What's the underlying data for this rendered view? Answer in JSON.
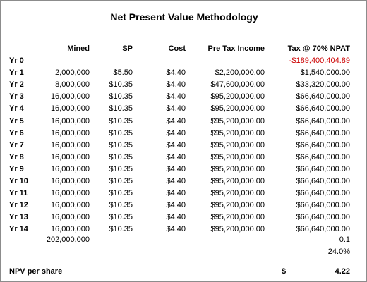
{
  "title": "Net Present Value Methodology",
  "headers": {
    "mined": "Mined",
    "sp": "SP",
    "cost": "Cost",
    "pre_tax_income": "Pre Tax Income",
    "tax": "Tax @ 70% NPAT"
  },
  "rows": [
    {
      "label": "Yr 0",
      "mined": "",
      "sp": "",
      "cost": "",
      "pre_tax_income": "",
      "tax": "-$189,400,404.89"
    },
    {
      "label": "Yr 1",
      "mined": "2,000,000",
      "sp": "$5.50",
      "cost": "$4.40",
      "pre_tax_income": "$2,200,000.00",
      "tax": "$1,540,000.00"
    },
    {
      "label": "Yr 2",
      "mined": "8,000,000",
      "sp": "$10.35",
      "cost": "$4.40",
      "pre_tax_income": "$47,600,000.00",
      "tax": "$33,320,000.00"
    },
    {
      "label": "Yr 3",
      "mined": "16,000,000",
      "sp": "$10.35",
      "cost": "$4.40",
      "pre_tax_income": "$95,200,000.00",
      "tax": "$66,640,000.00"
    },
    {
      "label": "Yr 4",
      "mined": "16,000,000",
      "sp": "$10.35",
      "cost": "$4.40",
      "pre_tax_income": "$95,200,000.00",
      "tax": "$66,640,000.00"
    },
    {
      "label": "Yr 5",
      "mined": "16,000,000",
      "sp": "$10.35",
      "cost": "$4.40",
      "pre_tax_income": "$95,200,000.00",
      "tax": "$66,640,000.00"
    },
    {
      "label": "Yr 6",
      "mined": "16,000,000",
      "sp": "$10.35",
      "cost": "$4.40",
      "pre_tax_income": "$95,200,000.00",
      "tax": "$66,640,000.00"
    },
    {
      "label": "Yr 7",
      "mined": "16,000,000",
      "sp": "$10.35",
      "cost": "$4.40",
      "pre_tax_income": "$95,200,000.00",
      "tax": "$66,640,000.00"
    },
    {
      "label": "Yr 8",
      "mined": "16,000,000",
      "sp": "$10.35",
      "cost": "$4.40",
      "pre_tax_income": "$95,200,000.00",
      "tax": "$66,640,000.00"
    },
    {
      "label": "Yr 9",
      "mined": "16,000,000",
      "sp": "$10.35",
      "cost": "$4.40",
      "pre_tax_income": "$95,200,000.00",
      "tax": "$66,640,000.00"
    },
    {
      "label": "Yr 10",
      "mined": "16,000,000",
      "sp": "$10.35",
      "cost": "$4.40",
      "pre_tax_income": "$95,200,000.00",
      "tax": "$66,640,000.00"
    },
    {
      "label": "Yr 11",
      "mined": "16,000,000",
      "sp": "$10.35",
      "cost": "$4.40",
      "pre_tax_income": "$95,200,000.00",
      "tax": "$66,640,000.00"
    },
    {
      "label": "Yr 12",
      "mined": "16,000,000",
      "sp": "$10.35",
      "cost": "$4.40",
      "pre_tax_income": "$95,200,000.00",
      "tax": "$66,640,000.00"
    },
    {
      "label": "Yr 13",
      "mined": "16,000,000",
      "sp": "$10.35",
      "cost": "$4.40",
      "pre_tax_income": "$95,200,000.00",
      "tax": "$66,640,000.00"
    },
    {
      "label": "Yr 14",
      "mined": "16,000,000",
      "sp": "$10.35",
      "cost": "$4.40",
      "pre_tax_income": "$95,200,000.00",
      "tax": "$66,640,000.00"
    }
  ],
  "totals": {
    "mined_total": "202,000,000",
    "tax_value_1": "0.1",
    "tax_value_2": "24.0%"
  },
  "npv": {
    "label": "NPV per share",
    "currency": "$",
    "value": "4.22"
  },
  "colors": {
    "negative": "#cc0000",
    "border": "#8c8c8c"
  }
}
